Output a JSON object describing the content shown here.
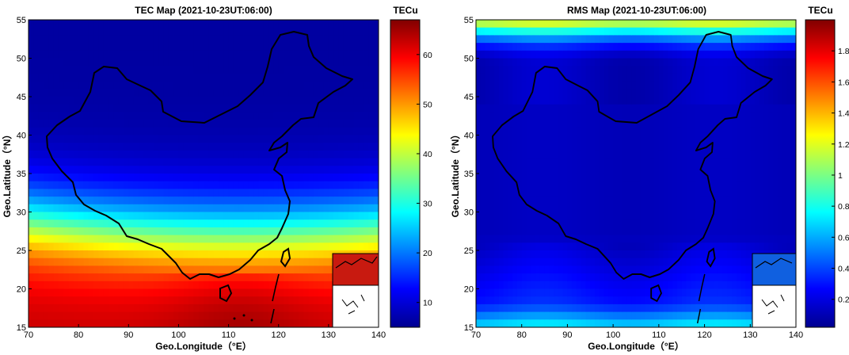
{
  "chart_data": [
    {
      "type": "heatmap",
      "title": "TEC Map (2021-10-23UT:06:00)",
      "xlabel": "Geo.Longitude（°E）",
      "ylabel": "Geo.Latitude（°N）",
      "xlim": [
        70,
        140
      ],
      "ylim": [
        15,
        55
      ],
      "xticks": [
        70,
        80,
        90,
        100,
        110,
        120,
        130,
        140
      ],
      "yticks": [
        15,
        20,
        25,
        30,
        35,
        40,
        45,
        50,
        55
      ],
      "colorbar": {
        "label": "TECu",
        "range": [
          5,
          67
        ],
        "ticks": [
          "10",
          "20",
          "30",
          "40",
          "50",
          "60"
        ],
        "tick_values": [
          10,
          20,
          30,
          40,
          50,
          60
        ]
      },
      "colormap": "jet",
      "pattern": "equatorial anomaly: high TEC (~60-67 TECu) south of ~22°N centred near 110°E, decreasing northward to ~7 TECu above 35°N"
    },
    {
      "type": "heatmap",
      "title": "RMS Map (2021-10-23UT:06:00)",
      "xlabel": "Geo.Longitude（°E）",
      "ylabel": "Geo.Latitude（°N）",
      "xlim": [
        70,
        140
      ],
      "ylim": [
        15,
        55
      ],
      "xticks": [
        70,
        80,
        90,
        100,
        110,
        120,
        130,
        140
      ],
      "yticks": [
        15,
        20,
        25,
        30,
        35,
        40,
        45,
        50,
        55
      ],
      "colorbar": {
        "label": "TECu",
        "range": [
          0.02,
          2.0
        ],
        "ticks": [
          "0.2",
          "0.4",
          "0.6",
          "0.8",
          "1",
          "1.2",
          "1.4",
          "1.6",
          "1.8"
        ],
        "tick_values": [
          0.2,
          0.4,
          0.6,
          0.8,
          1.0,
          1.2,
          1.4,
          1.6,
          1.8
        ]
      },
      "colormap": "jet",
      "pattern": "low RMS (~0.1-0.3 TECu) over mainland, higher (~0.5-1.4 TECu) toward 55°N edge and south of 20°N"
    }
  ],
  "colors": {
    "border": "#000000",
    "background": "#ffffff",
    "coastline": "#000000"
  }
}
